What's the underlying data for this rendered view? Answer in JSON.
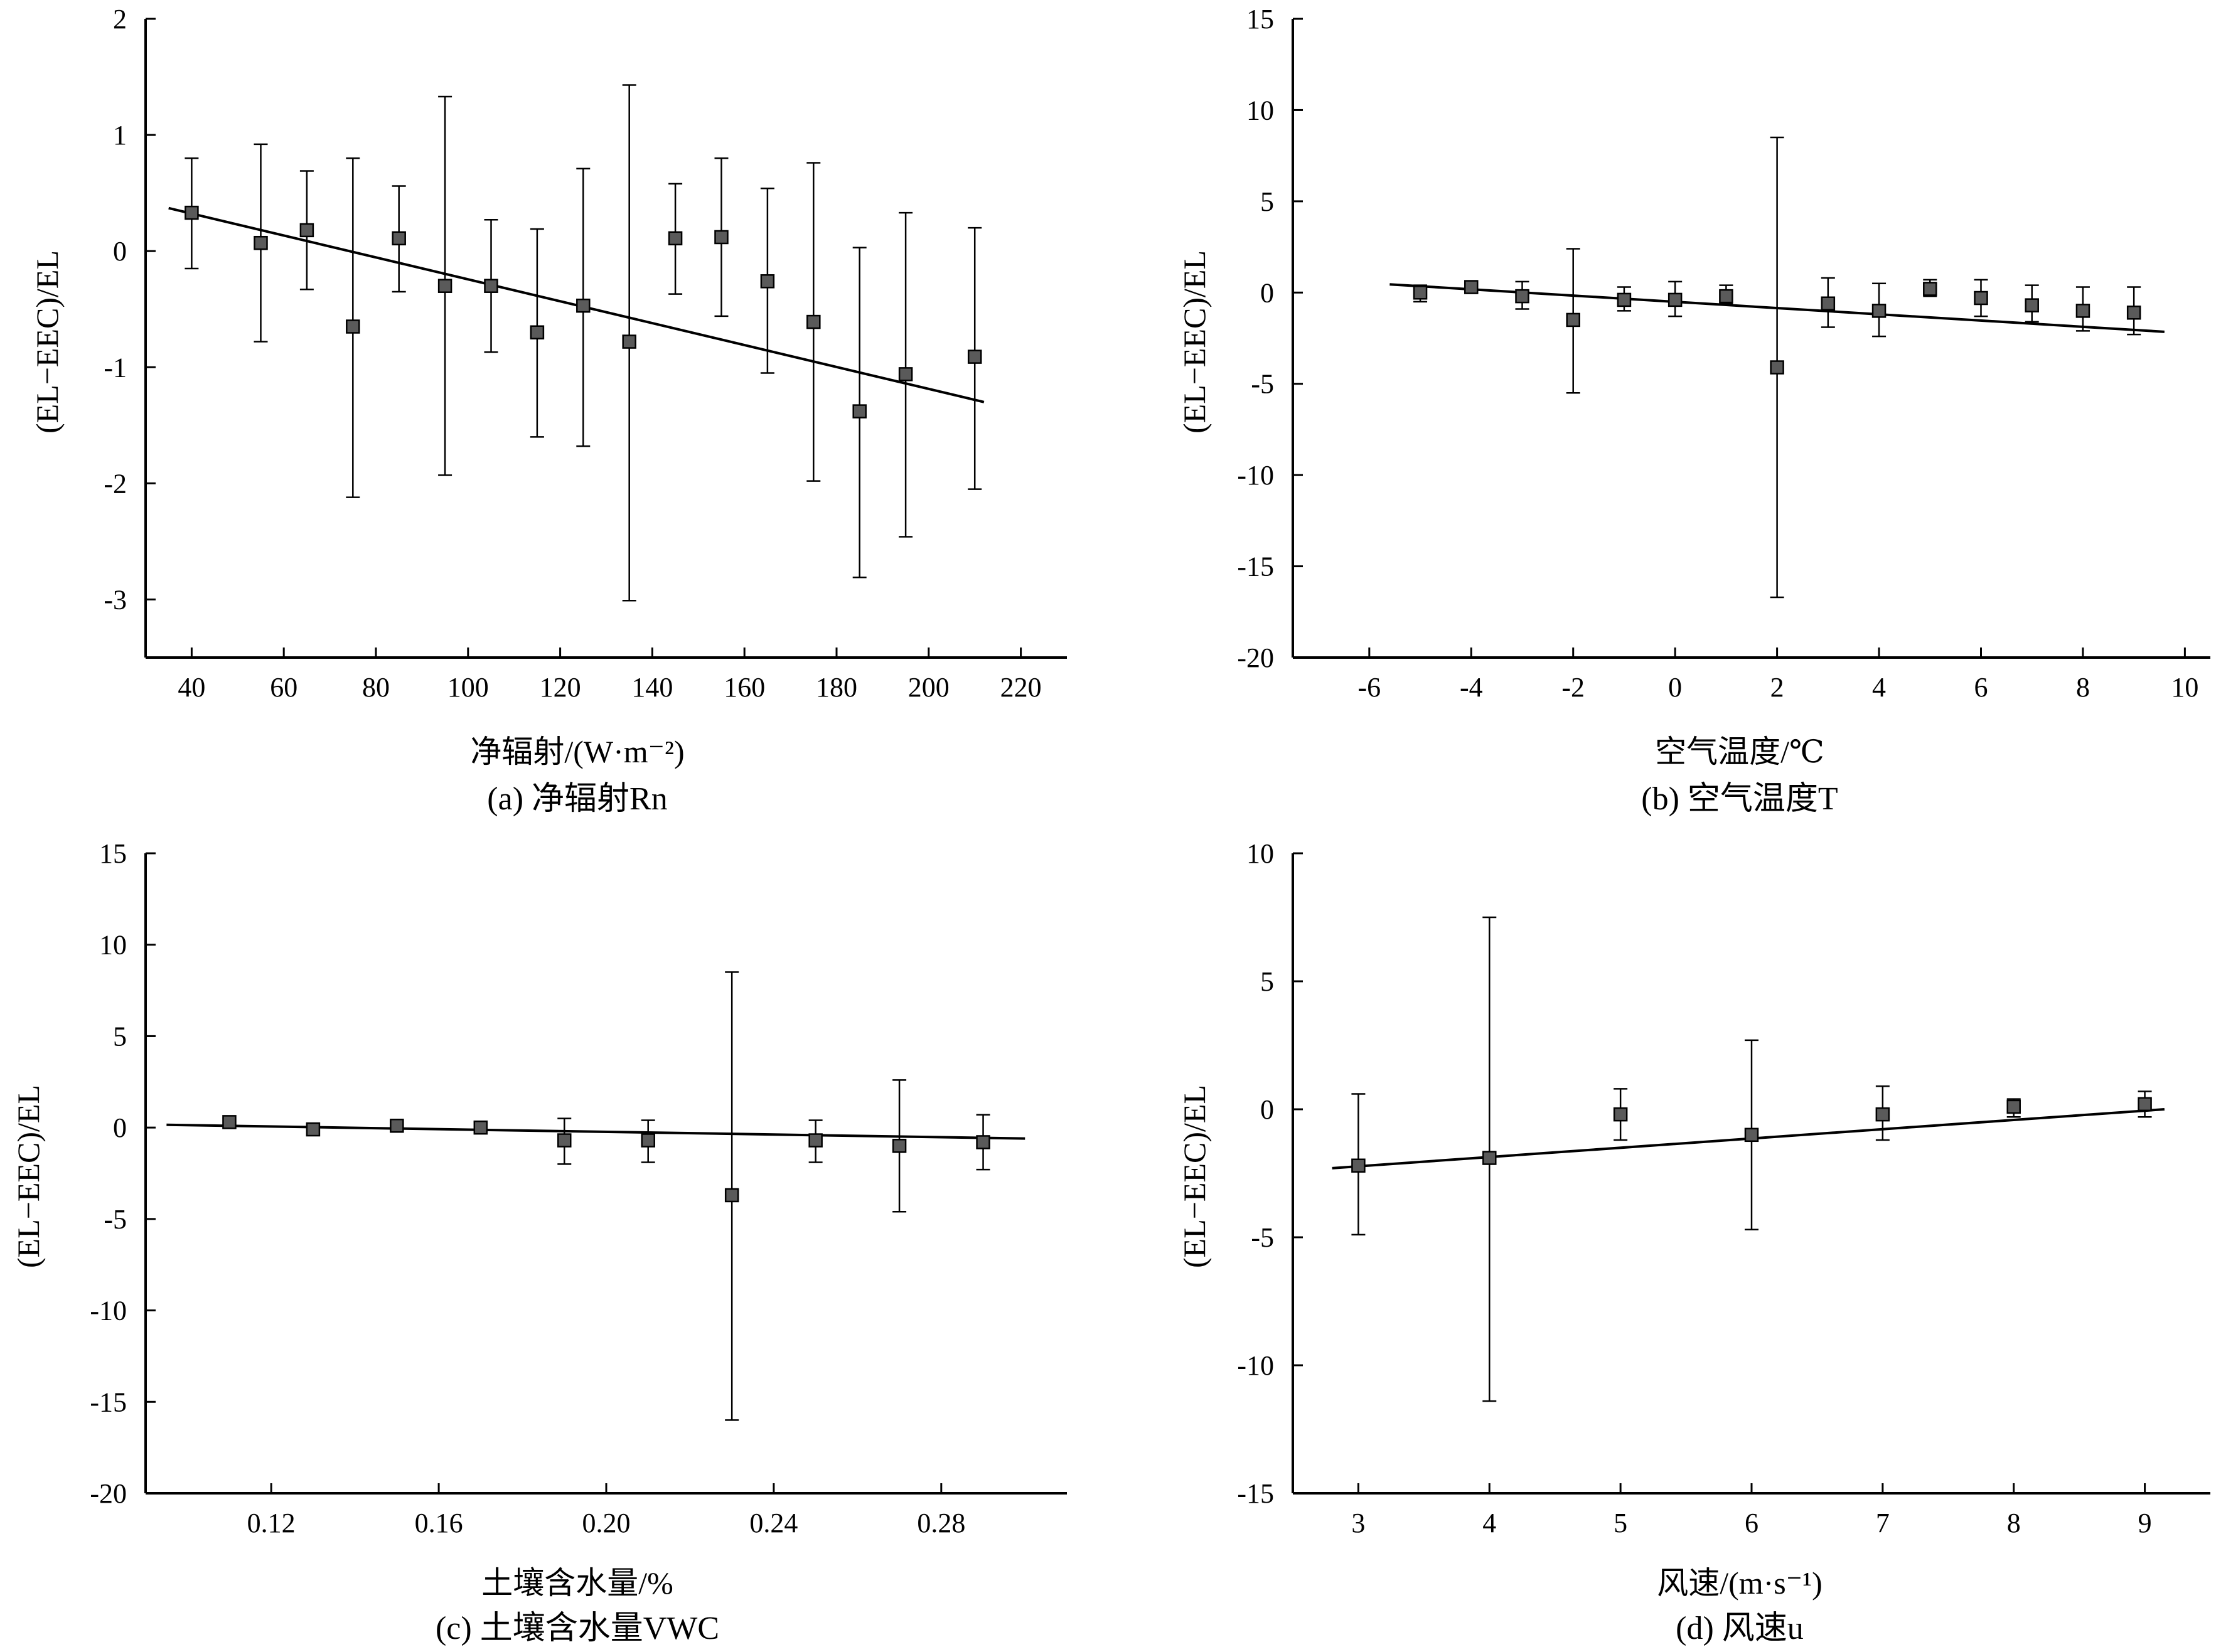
{
  "chart_data": [
    {
      "id": "a",
      "type": "scatter",
      "caption": "(a) 净辐射Rn",
      "xlabel": "净辐射/(W·m⁻²)",
      "ylabel": "(EL−EEC)/EL",
      "xlim": [
        30,
        230
      ],
      "ylim": [
        -3.5,
        2
      ],
      "xticks": [
        40,
        60,
        80,
        100,
        120,
        140,
        160,
        180,
        200,
        220
      ],
      "yticks": [
        -3,
        -2,
        -1,
        0,
        1,
        2
      ],
      "xtick_labels": [
        "40",
        "60",
        "80",
        "100",
        "120",
        "140",
        "160",
        "180",
        "200",
        "220"
      ],
      "ytick_labels": [
        "-3",
        "-2",
        "-1",
        "0",
        "1",
        "2"
      ],
      "series": [
        {
          "x": [
            40,
            55,
            65,
            75,
            85,
            95,
            105,
            115,
            125,
            135,
            145,
            155,
            165,
            175,
            185,
            195,
            210
          ],
          "y": [
            0.33,
            0.07,
            0.18,
            -0.65,
            0.11,
            -0.3,
            -0.3,
            -0.7,
            -0.47,
            -0.78,
            0.11,
            0.12,
            -0.26,
            -0.61,
            -1.38,
            -1.06,
            -0.91
          ],
          "err_low": [
            0.48,
            0.85,
            0.51,
            1.47,
            0.46,
            1.63,
            0.57,
            0.9,
            1.21,
            2.23,
            0.48,
            0.68,
            0.79,
            1.37,
            1.43,
            1.4,
            1.14
          ],
          "err_high": [
            0.47,
            0.85,
            0.51,
            1.45,
            0.45,
            1.63,
            0.57,
            0.89,
            1.18,
            2.21,
            0.47,
            0.68,
            0.8,
            1.37,
            1.41,
            1.39,
            1.11
          ]
        }
      ],
      "fit_line": {
        "x": [
          35,
          212
        ],
        "y": [
          0.37,
          -1.3
        ]
      }
    },
    {
      "id": "b",
      "type": "scatter",
      "caption": "(b) 空气温度T",
      "xlabel": "空气温度/℃",
      "ylabel": "(EL−EEC)/EL",
      "xlim": [
        -7.5,
        10.5
      ],
      "ylim": [
        -20,
        15
      ],
      "xticks": [
        -6,
        -4,
        -2,
        0,
        2,
        4,
        6,
        8,
        10
      ],
      "yticks": [
        -20,
        -15,
        -10,
        -5,
        0,
        5,
        10,
        15
      ],
      "xtick_labels": [
        "-6",
        "-4",
        "-2",
        "0",
        "2",
        "4",
        "6",
        "8",
        "10"
      ],
      "ytick_labels": [
        "-20",
        "-15",
        "-10",
        "-5",
        "0",
        "5",
        "10",
        "15"
      ],
      "series": [
        {
          "x": [
            -5,
            -4,
            -3,
            -2,
            -1,
            0,
            1,
            2,
            3,
            4,
            5,
            6,
            7,
            8,
            9
          ],
          "y": [
            0.0,
            0.3,
            -0.2,
            -1.5,
            -0.4,
            -0.4,
            -0.2,
            -4.1,
            -0.6,
            -1.0,
            0.2,
            -0.3,
            -0.7,
            -1.0,
            -1.1
          ],
          "err_low": [
            0.5,
            0.2,
            0.7,
            4.0,
            0.6,
            0.9,
            0.4,
            12.6,
            1.3,
            1.4,
            0.4,
            1.0,
            0.9,
            1.1,
            1.2
          ],
          "err_high": [
            0.4,
            0.2,
            0.8,
            3.9,
            0.7,
            1.0,
            0.6,
            12.6,
            1.4,
            1.5,
            0.5,
            1.0,
            1.1,
            1.3,
            1.4
          ]
        }
      ],
      "fit_line": {
        "x": [
          -5.6,
          9.6
        ],
        "y": [
          0.45,
          -2.15
        ]
      }
    },
    {
      "id": "c",
      "type": "scatter",
      "caption": "(c) 土壤含水量VWC",
      "xlabel": "土壤含水量/%",
      "ylabel": "(EL−EEC)/EL",
      "xlim": [
        0.09,
        0.31
      ],
      "ylim": [
        -20,
        15
      ],
      "xticks": [
        0.12,
        0.16,
        0.2,
        0.24,
        0.28
      ],
      "yticks": [
        -20,
        -15,
        -10,
        -5,
        0,
        5,
        10,
        15
      ],
      "xtick_labels": [
        "0.12",
        "0.16",
        "0.20",
        "0.24",
        "0.28"
      ],
      "ytick_labels": [
        "-20",
        "-15",
        "-10",
        "-5",
        "0",
        "5",
        "10",
        "15"
      ],
      "series": [
        {
          "x": [
            0.11,
            0.13,
            0.15,
            0.17,
            0.19,
            0.21,
            0.23,
            0.25,
            0.27,
            0.29
          ],
          "y": [
            0.3,
            -0.1,
            0.1,
            0.0,
            -0.7,
            -0.7,
            -3.7,
            -0.7,
            -1.0,
            -0.8
          ],
          "err_low": [
            0.3,
            0.3,
            0.3,
            0.3,
            1.3,
            1.2,
            12.3,
            1.2,
            3.6,
            1.5
          ],
          "err_high": [
            0.2,
            0.3,
            0.2,
            0.3,
            1.2,
            1.1,
            12.2,
            1.1,
            3.6,
            1.5
          ]
        }
      ],
      "fit_line": {
        "x": [
          0.095,
          0.3
        ],
        "y": [
          0.15,
          -0.6
        ]
      }
    },
    {
      "id": "d",
      "type": "scatter",
      "caption": "(d) 风速u",
      "xlabel": "风速/(m·s⁻¹)",
      "ylabel": "(EL−EEC)/EL",
      "xlim": [
        2.5,
        9.5
      ],
      "ylim": [
        -15,
        10
      ],
      "xticks": [
        3,
        4,
        5,
        6,
        7,
        8,
        9
      ],
      "yticks": [
        -15,
        -10,
        -5,
        0,
        5,
        10
      ],
      "xtick_labels": [
        "3",
        "4",
        "5",
        "6",
        "7",
        "8",
        "9"
      ],
      "ytick_labels": [
        "-15",
        "-10",
        "-5",
        "0",
        "5",
        "10"
      ],
      "series": [
        {
          "x": [
            3,
            4,
            5,
            6,
            7,
            8,
            9
          ],
          "y": [
            -2.2,
            -1.9,
            -0.2,
            -1.0,
            -0.2,
            0.1,
            0.2
          ],
          "err_low": [
            2.7,
            9.5,
            1.0,
            3.7,
            1.0,
            0.4,
            0.5
          ],
          "err_high": [
            2.8,
            9.4,
            1.0,
            3.7,
            1.1,
            0.3,
            0.5
          ]
        }
      ],
      "fit_line": {
        "x": [
          2.8,
          9.15
        ],
        "y": [
          -2.3,
          0.0
        ]
      }
    }
  ]
}
